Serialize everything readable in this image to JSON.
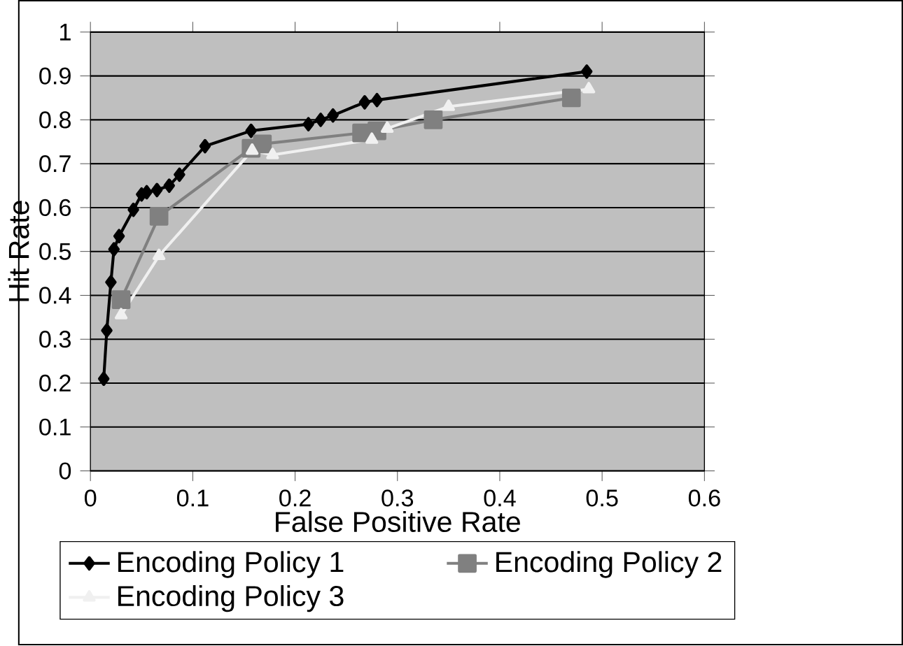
{
  "chart_data": {
    "type": "line",
    "xlabel": "False Positive Rate",
    "ylabel": "Hit Rate",
    "xlim": [
      0,
      0.6
    ],
    "xticks": [
      0,
      0.1,
      0.2,
      0.3,
      0.4,
      0.5,
      0.6
    ],
    "ylim": [
      0,
      1
    ],
    "yticks": [
      0,
      0.1,
      0.2,
      0.3,
      0.4,
      0.5,
      0.6,
      0.7,
      0.8,
      0.9,
      1
    ],
    "grid": "y",
    "legend": "bottom",
    "series": [
      {
        "name": "Encoding Policy 1",
        "color": "#000000",
        "marker": "diamond",
        "x": [
          0.013,
          0.016,
          0.02,
          0.023,
          0.028,
          0.042,
          0.05,
          0.055,
          0.065,
          0.077,
          0.087,
          0.112,
          0.157,
          0.213,
          0.225,
          0.237,
          0.268,
          0.28,
          0.485
        ],
        "values": [
          0.21,
          0.32,
          0.43,
          0.505,
          0.535,
          0.595,
          0.63,
          0.635,
          0.64,
          0.65,
          0.675,
          0.74,
          0.775,
          0.79,
          0.8,
          0.81,
          0.84,
          0.845,
          0.91
        ]
      },
      {
        "name": "Encoding Policy 2",
        "color": "#808080",
        "marker": "square",
        "x": [
          0.03,
          0.067,
          0.157,
          0.168,
          0.265,
          0.28,
          0.335,
          0.47
        ],
        "values": [
          0.39,
          0.58,
          0.735,
          0.745,
          0.77,
          0.775,
          0.8,
          0.85
        ]
      },
      {
        "name": "Encoding Policy 3",
        "color": "#f0f0f0",
        "marker": "triangle",
        "x": [
          0.03,
          0.067,
          0.158,
          0.178,
          0.275,
          0.29,
          0.35,
          0.487
        ],
        "values": [
          0.355,
          0.49,
          0.73,
          0.72,
          0.755,
          0.78,
          0.83,
          0.87
        ]
      }
    ]
  }
}
